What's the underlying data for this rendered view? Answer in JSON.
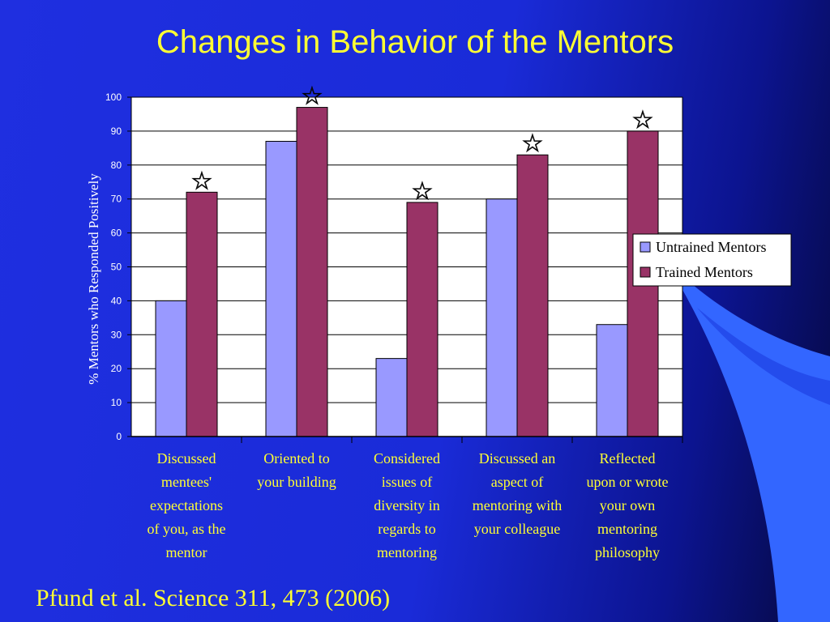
{
  "slide": {
    "title": "Changes in Behavior of the Mentors",
    "citation": "Pfund et al.  Science 311, 473 (2006)"
  },
  "colors": {
    "title_text": "#ffff33",
    "category_text": "#ffff33",
    "untrained": "#9999ff",
    "trained": "#993366",
    "plot_bg": "#ffffff",
    "axis_text": "#ffffff"
  },
  "chart_data": {
    "type": "bar",
    "ylabel": "% Mentors who Responded Positively",
    "ylim": [
      0,
      100
    ],
    "yticks": [
      0,
      10,
      20,
      30,
      40,
      50,
      60,
      70,
      80,
      90,
      100
    ],
    "grid": true,
    "legend_position": "right",
    "categories": [
      [
        "Discussed",
        "mentees'",
        "expectations",
        "of you, as the",
        "mentor"
      ],
      [
        "Oriented to",
        "your building"
      ],
      [
        "Considered",
        "issues of",
        "diversity in",
        "regards to",
        "mentoring"
      ],
      [
        "Discussed an",
        "aspect of",
        "mentoring with",
        "your colleague"
      ],
      [
        "Reflected",
        "upon or wrote",
        "your own",
        "mentoring",
        "philosophy"
      ]
    ],
    "series": [
      {
        "name": "Untrained Mentors",
        "color": "#9999ff",
        "values": [
          40,
          87,
          23,
          70,
          33
        ]
      },
      {
        "name": "Trained Mentors",
        "color": "#993366",
        "values": [
          72,
          97,
          69,
          83,
          90
        ]
      }
    ],
    "annotations": {
      "marker": "☆",
      "significant_categories": [
        0,
        1,
        2,
        3,
        4
      ],
      "series": "Trained Mentors"
    }
  }
}
